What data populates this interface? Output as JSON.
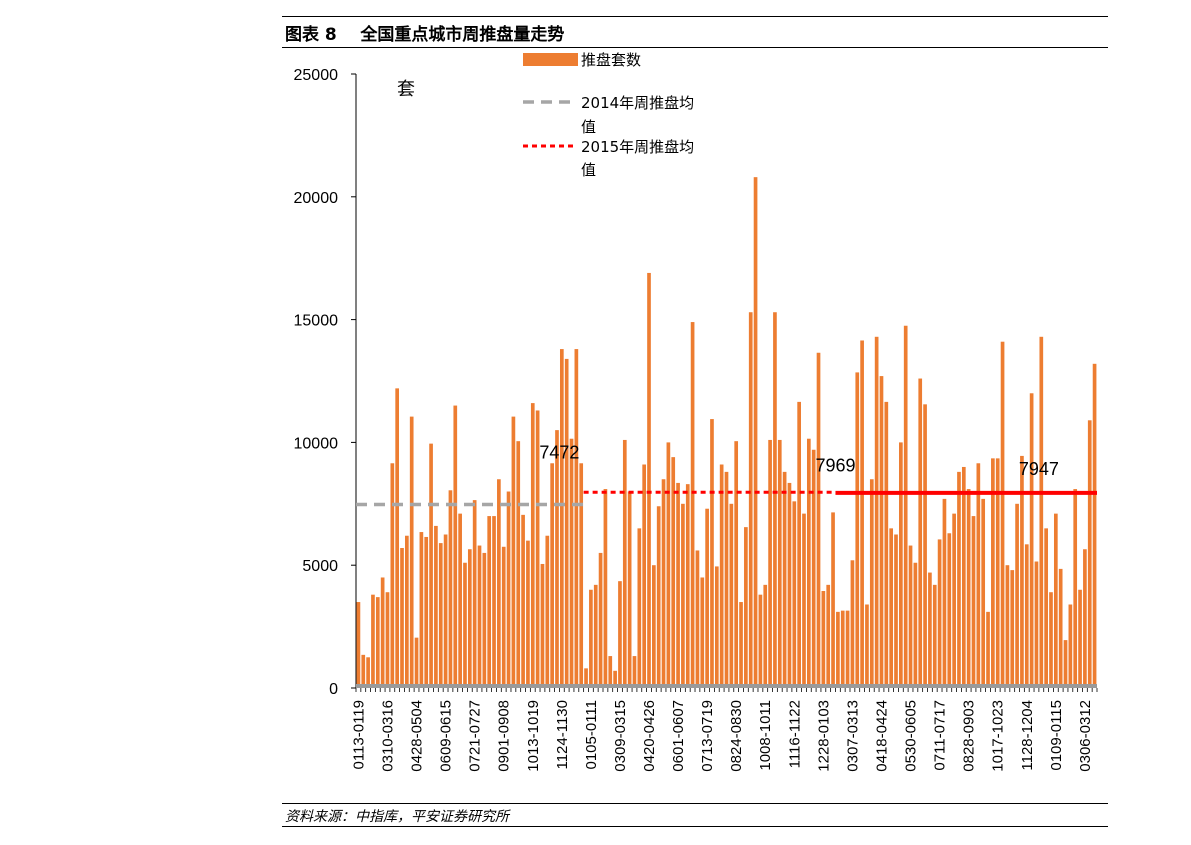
{
  "figure": {
    "title": "图表 8    全国重点城市周推盘量走势",
    "source": "资料来源：中指库，平安证券研究所"
  },
  "colors": {
    "bar": "#ED7D31",
    "avg2014": "#A6A6A6",
    "avg2015": "#FF0000",
    "avg2016": "#FF0000",
    "axis": "#000000"
  },
  "chart_data": {
    "type": "bar",
    "unit_label": "套",
    "ylim": [
      0,
      25000
    ],
    "yticks": [
      0,
      5000,
      10000,
      15000,
      20000,
      25000
    ],
    "grid": false,
    "legend_position": "top",
    "legend": [
      {
        "label": "推盘套数",
        "style": "bar",
        "color": "#ED7D31"
      },
      {
        "label": "2014年周推盘均值",
        "style": "dashed",
        "color": "#A6A6A6"
      },
      {
        "label": "2015年周推盘均值",
        "style": "dotted",
        "color": "#FF0000"
      }
    ],
    "xtick_labels": [
      "0113-0119",
      "0310-0316",
      "0428-0504",
      "0609-0615",
      "0721-0727",
      "0901-0908",
      "1013-1019",
      "1124-1130",
      "0105-0111",
      "0309-0315",
      "0420-0426",
      "0601-0607",
      "0713-0719",
      "0824-0830",
      "1008-1011",
      "1116-1122",
      "1228-0103",
      "0307-0313",
      "0418-0424",
      "0530-0605",
      "0711-0717",
      "0828-0903",
      "1017-1023",
      "1128-1204",
      "0109-0115",
      "0306-0312"
    ],
    "label_every": 6,
    "series": [
      {
        "values": [
          3500,
          1350,
          1250,
          3800,
          3700,
          4500,
          3900,
          9150,
          12200,
          5700,
          6200,
          11050,
          2050,
          6350,
          6150,
          9950,
          6600,
          5900,
          6250,
          8050,
          11500,
          7100,
          5100,
          5650,
          7650,
          5800,
          5500,
          7000,
          7000,
          8500,
          5750,
          8000,
          11050,
          10050,
          7050,
          6000,
          11600,
          11300,
          5050,
          6200,
          9150,
          10500,
          13800,
          13400,
          10150,
          13800,
          9150,
          800,
          4000,
          4200,
          5500,
          8100,
          1300,
          700,
          4350,
          10100,
          8000,
          1300,
          6500,
          9100,
          16900,
          5000,
          7400,
          8500,
          10000,
          9400,
          8350,
          7500,
          8300,
          14900,
          5600,
          4500,
          7300,
          10950,
          4950,
          9100,
          8800,
          7500,
          10050,
          3500,
          6550,
          15300,
          20800,
          3800,
          4200,
          10100,
          15300,
          10100,
          8800,
          8350,
          7600,
          11650,
          7100,
          10150,
          9700,
          13650,
          3950,
          4200,
          7150,
          3100,
          3150,
          3150,
          5200,
          12850,
          14150,
          3400,
          8500,
          14300,
          12700,
          11650,
          6500,
          6250,
          10000,
          14750,
          5800,
          5100,
          12600,
          11550,
          4700,
          4200,
          6050,
          7700,
          6300,
          7100,
          8800,
          9000,
          8100,
          7000,
          9150,
          7700,
          3100,
          9350,
          9350,
          14100,
          5000,
          4800,
          7500,
          9450,
          5850,
          12000,
          5150,
          14300,
          6500,
          3900,
          7100,
          4850,
          1950,
          3400,
          8100,
          4000,
          5650,
          10900,
          13200
        ]
      }
    ],
    "averages": [
      {
        "label": "2014年周推盘均值",
        "value": 7472,
        "from_index": 0,
        "to_index": 46,
        "style": "dashed",
        "annotation": "7472"
      },
      {
        "label": "2015年周推盘均值",
        "value": 7969,
        "from_index": 47,
        "to_index": 98,
        "style": "dotted",
        "annotation": "7969"
      },
      {
        "label": "",
        "value": 7947,
        "from_index": 99,
        "to_index": 152,
        "style": "solid",
        "annotation": "7947"
      }
    ]
  }
}
